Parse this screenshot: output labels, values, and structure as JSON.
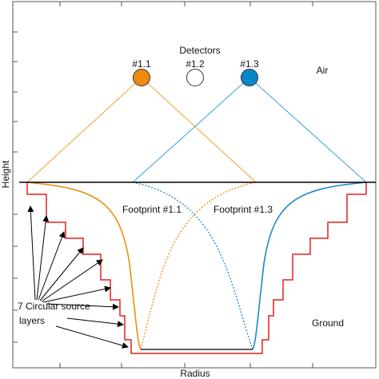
{
  "detectors_title": "Detectors",
  "detectors": [
    {
      "label": "#1.1"
    },
    {
      "label": "#1.2"
    },
    {
      "label": "#1.3"
    }
  ],
  "regions": {
    "air": "Air",
    "ground": "Ground"
  },
  "footprints": [
    "Footprint #1.1",
    "Footprint #1.3"
  ],
  "source_note": [
    "7 Circular source",
    "layers"
  ],
  "axes": {
    "y_label": "Height",
    "x_label": "Radius"
  }
}
